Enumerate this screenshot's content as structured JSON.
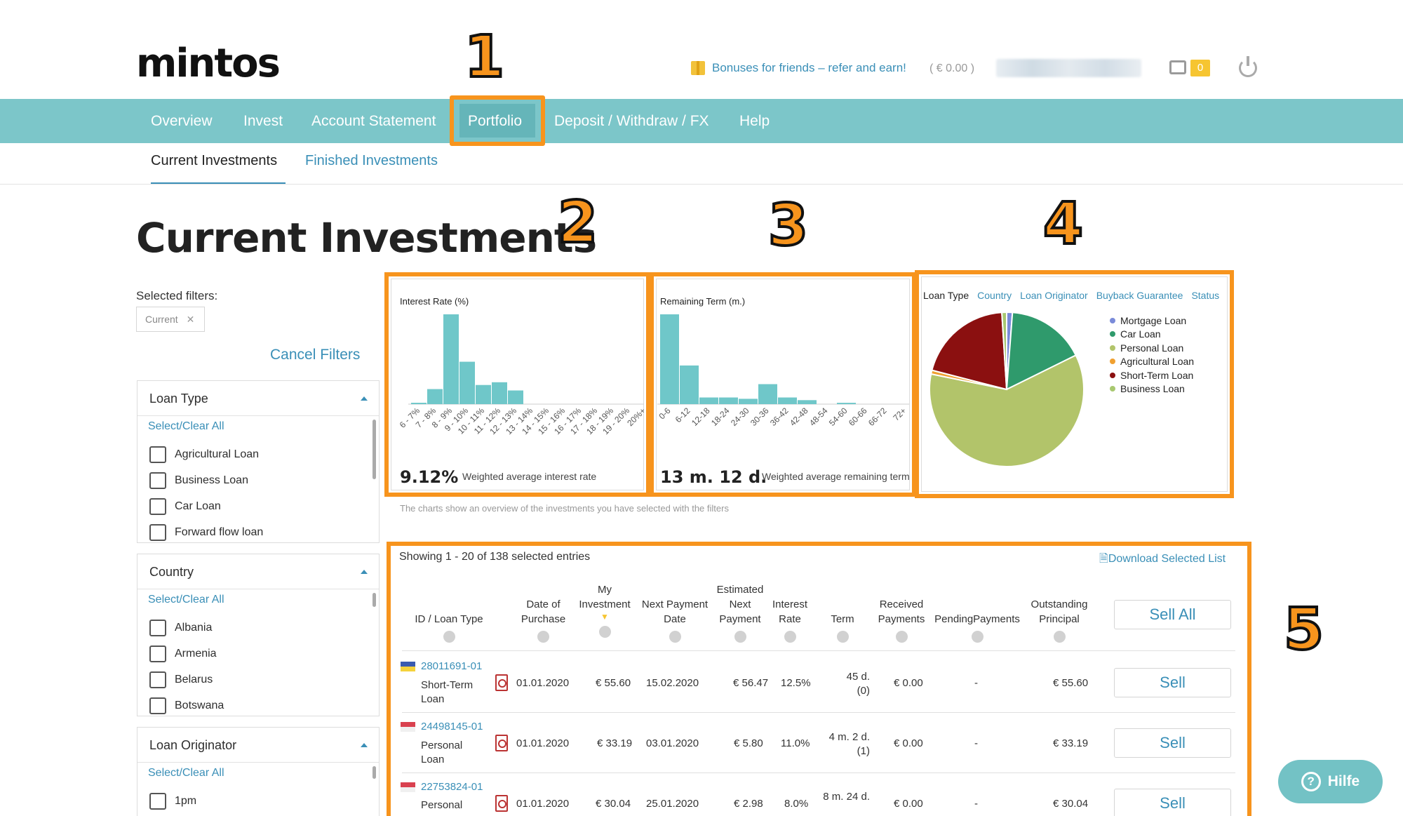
{
  "header": {
    "logo": "mintos",
    "bonus": "Bonuses for friends – refer and earn!",
    "balance": "( € 0.00 )",
    "cart_count": "0"
  },
  "nav": {
    "items": [
      "Overview",
      "Invest",
      "Account Statement",
      "Portfolio",
      "Deposit / Withdraw / FX",
      "Help"
    ],
    "active": "Portfolio"
  },
  "subtabs": {
    "active": "Current Investments",
    "other": "Finished Investments"
  },
  "page": {
    "title": "Current Investments"
  },
  "markers": [
    "1",
    "2",
    "3",
    "4",
    "5"
  ],
  "filters": {
    "selected_label": "Selected filters:",
    "chip": "Current",
    "cancel": "Cancel Filters",
    "loan_type": {
      "title": "Loan Type",
      "select_all": "Select/Clear All",
      "options": [
        "Agricultural Loan",
        "Business Loan",
        "Car Loan",
        "Forward flow loan"
      ]
    },
    "country": {
      "title": "Country",
      "select_all": "Select/Clear All",
      "options": [
        "Albania",
        "Armenia",
        "Belarus",
        "Botswana"
      ]
    },
    "originator": {
      "title": "Loan Originator",
      "select_all": "Select/Clear All",
      "options": [
        "1pm"
      ]
    }
  },
  "chart_data": [
    {
      "type": "bar",
      "title": "Interest Rate (%)",
      "categories": [
        "6 - 7%",
        "7 - 8%",
        "8 - 9%",
        "9 - 10%",
        "10 - 11%",
        "11 - 12%",
        "12 - 13%",
        "13 - 14%",
        "14 - 15%",
        "15 - 16%",
        "16 - 17%",
        "17 - 18%",
        "18 - 19%",
        "19 - 20%",
        "20%+"
      ],
      "values": [
        1,
        11,
        69,
        31,
        14,
        16,
        10,
        0,
        0,
        0,
        0,
        0,
        0,
        0,
        0
      ],
      "summary_value": "9.12%",
      "summary_label": "Weighted average interest rate"
    },
    {
      "type": "bar",
      "title": "Remaining Term (m.)",
      "categories": [
        "0-6",
        "6-12",
        "12-18",
        "18-24",
        "24-30",
        "30-36",
        "36-42",
        "42-48",
        "48-54",
        "54-60",
        "60-66",
        "66-72",
        "72+"
      ],
      "values": [
        68,
        29,
        5,
        5,
        4,
        15,
        5,
        3,
        0,
        1,
        0,
        0,
        0
      ],
      "summary_value": "13 m. 12 d.",
      "summary_label": "Weighted average remaining term"
    },
    {
      "type": "pie",
      "tabs": [
        "Loan Type",
        "Country",
        "Loan Originator",
        "Buyback Guarantee",
        "Status"
      ],
      "labels": [
        "Mortgage Loan",
        "Car Loan",
        "Personal Loan",
        "Agricultural Loan",
        "Short-Term Loan",
        "Business Loan"
      ],
      "values": [
        1.2,
        16.5,
        60.5,
        0.8,
        20,
        1
      ],
      "colors": [
        "#7a8bd9",
        "#2f9a6c",
        "#b2c46a",
        "#f0a030",
        "#8b1010",
        "#a8c870"
      ]
    }
  ],
  "chart_note": "The charts show an overview of the investments you have selected with the filters",
  "table": {
    "showing": "Showing 1 - 20 of 138 selected entries",
    "download": "Download Selected List",
    "headers": {
      "id": "ID / Loan Type",
      "date": "Date of\nPurchase",
      "inv": "My\nInvestment",
      "npd": "Next Payment\nDate",
      "est": "Estimated\nNext\nPayment",
      "rate": "Interest\nRate",
      "term": "Term",
      "rec": "Received\nPayments",
      "pend": "PendingPayments",
      "out": "Outstanding\nPrincipal",
      "sell_all": "Sell All"
    },
    "rows": [
      {
        "id": "28011691-01",
        "type": "Short-Term\nLoan",
        "date": "01.01.2020",
        "inv": "€ 55.60",
        "npd": "15.02.2020",
        "est": "€ 56.47",
        "rate": "12.5%",
        "term": "45 d.\n(0)",
        "rec": "€ 0.00",
        "pend": "-",
        "out": "€ 55.60",
        "sell": "Sell"
      },
      {
        "id": "24498145-01",
        "type": "Personal\nLoan",
        "date": "01.01.2020",
        "inv": "€ 33.19",
        "npd": "03.01.2020",
        "est": "€ 5.80",
        "rate": "11.0%",
        "term": "4 m. 2 d.\n(1)",
        "rec": "€ 0.00",
        "pend": "-",
        "out": "€ 33.19",
        "sell": "Sell"
      },
      {
        "id": "22753824-01",
        "type": "Personal",
        "date": "01.01.2020",
        "inv": "€ 30.04",
        "npd": "25.01.2020",
        "est": "€ 2.98",
        "rate": "8.0%",
        "term": "8 m. 24 d.",
        "rec": "€ 0.00",
        "pend": "-",
        "out": "€ 30.04",
        "sell": "Sell"
      }
    ]
  },
  "help": {
    "label": "Hilfe"
  }
}
